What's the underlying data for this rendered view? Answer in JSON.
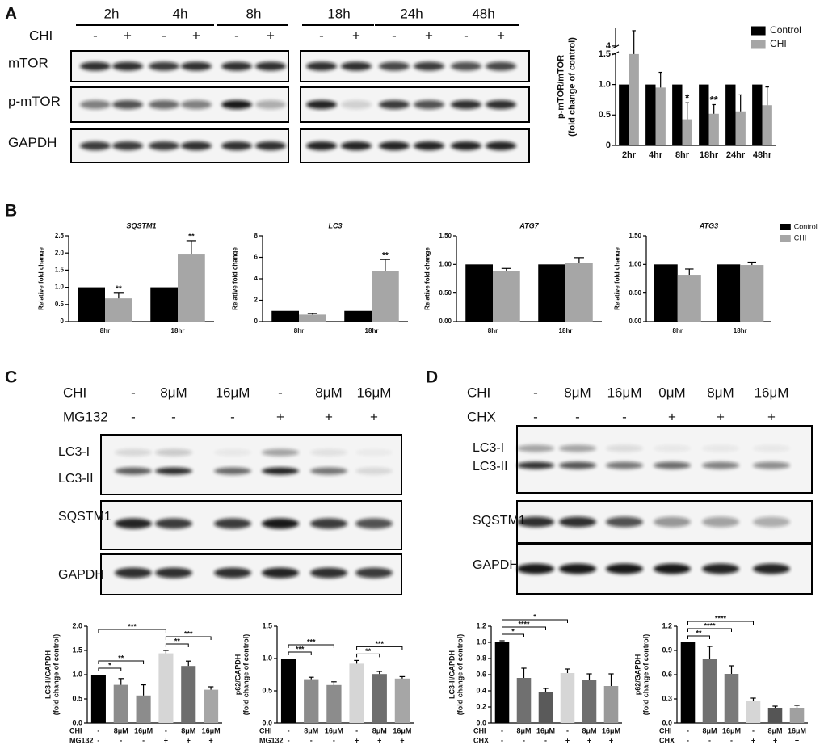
{
  "panels": [
    "A",
    "B",
    "C",
    "D"
  ],
  "blots": {
    "A": {
      "times": [
        "2h",
        "4h",
        "8h",
        "18h",
        "24h",
        "48h"
      ],
      "treatment": "CHI",
      "lanes": [
        "-",
        "+",
        "-",
        "+",
        "-",
        "+",
        "-",
        "+",
        "-",
        "+",
        "-",
        "+"
      ],
      "rows": [
        "mTOR",
        "p-mTOR",
        "GAPDH"
      ]
    },
    "C": {
      "conditions": [
        {
          "name": "CHI",
          "lanes": [
            "-",
            "8μM",
            "16μM",
            "-",
            "8μM",
            "16μM"
          ]
        },
        {
          "name": "MG132",
          "lanes": [
            "-",
            "-",
            "-",
            "+",
            "+",
            "+"
          ]
        }
      ],
      "rows": [
        "LC3-I",
        "LC3-II",
        "SQSTM1",
        "GAPDH"
      ]
    },
    "D": {
      "conditions": [
        {
          "name": "CHI",
          "lanes": [
            "-",
            "8μM",
            "16μM",
            "0μM",
            "8μM",
            "16μM"
          ]
        },
        {
          "name": "CHX",
          "lanes": [
            "-",
            "-",
            "-",
            "+",
            "+",
            "+"
          ]
        }
      ],
      "rows": [
        "LC3-I",
        "LC3-II",
        "SQSTM1",
        "GAPDH"
      ]
    }
  },
  "chart_data": [
    {
      "type": "bar",
      "ylabel": [
        "p-mTOR/mTOR",
        "(fold change of control)"
      ],
      "categories": [
        "2hr",
        "4hr",
        "8hr",
        "18hr",
        "24hr",
        "48hr"
      ],
      "series": [
        {
          "name": "Control",
          "color": "#000000",
          "values": [
            1,
            1,
            1,
            1,
            1,
            1
          ]
        },
        {
          "name": "CHI",
          "color": "#a6a6a6",
          "values": [
            1.5,
            0.95,
            0.43,
            0.52,
            0.56,
            0.66
          ],
          "errors": [
            5.1,
            0.25,
            0.27,
            0.15,
            0.27,
            0.3
          ]
        }
      ],
      "ylim": [
        0,
        7
      ],
      "ybreak": [
        1.5,
        4
      ],
      "yticks": [
        0,
        0.5,
        {
          "value": 1,
          "label": "1.0"
        },
        1.5,
        4
      ],
      "annotations": [
        {
          "text": "*",
          "category": 2,
          "series": 1
        },
        {
          "text": "**",
          "category": 3,
          "series": 1
        }
      ],
      "legend": "upper right"
    },
    {
      "type": "bar",
      "title": "SQSTM1",
      "ylabel": [
        "Relative fold change"
      ],
      "categories": [
        "8hr",
        "18hr"
      ],
      "series": [
        {
          "name": "Control",
          "color": "#000000",
          "values": [
            1,
            1
          ]
        },
        {
          "name": "CHI",
          "color": "#a6a6a6",
          "values": [
            0.68,
            1.98
          ],
          "errors": [
            0.15,
            0.38
          ]
        }
      ],
      "ylim": [
        0,
        2.5
      ],
      "yticks": [
        0,
        0.5,
        {
          "value": 1,
          "label": "1.0"
        },
        1.5,
        {
          "value": 2,
          "label": "2.0"
        },
        2.5
      ],
      "annotations": [
        {
          "text": "**",
          "category": 0,
          "series": 1
        },
        {
          "text": "**",
          "category": 1,
          "series": 1
        }
      ]
    },
    {
      "type": "bar",
      "title": "LC3",
      "ylabel": [
        "Relative fold change"
      ],
      "categories": [
        "8hr",
        "18hr"
      ],
      "series": [
        {
          "name": "Control",
          "color": "#000000",
          "values": [
            1,
            1
          ]
        },
        {
          "name": "CHI",
          "color": "#a6a6a6",
          "values": [
            0.65,
            4.75
          ],
          "errors": [
            0.1,
            1.05
          ]
        }
      ],
      "ylim": [
        0,
        8
      ],
      "yticks": [
        0,
        2,
        4,
        6,
        8
      ],
      "annotations": [
        {
          "text": "**",
          "category": 1,
          "series": 1
        }
      ]
    },
    {
      "type": "bar",
      "title": "ATG7",
      "ylabel": [
        "Relative fold change"
      ],
      "categories": [
        "8hr",
        "18hr"
      ],
      "series": [
        {
          "name": "Control",
          "color": "#000000",
          "values": [
            1,
            1
          ]
        },
        {
          "name": "CHI",
          "color": "#a6a6a6",
          "values": [
            0.89,
            1.02
          ],
          "errors": [
            0.04,
            0.1
          ]
        }
      ],
      "ylim": [
        0,
        1.5
      ],
      "yticks": [
        {
          "value": 0,
          "label": "0.00"
        },
        {
          "value": 0.5,
          "label": "0.50"
        },
        {
          "value": 1,
          "label": "1.00"
        },
        {
          "value": 1.5,
          "label": "1.50"
        }
      ]
    },
    {
      "type": "bar",
      "title": "ATG3",
      "ylabel": [
        "Relative fold change"
      ],
      "categories": [
        "8hr",
        "18hr"
      ],
      "series": [
        {
          "name": "Control",
          "color": "#000000",
          "values": [
            1,
            1
          ]
        },
        {
          "name": "CHI",
          "color": "#a6a6a6",
          "values": [
            0.82,
            0.99
          ],
          "errors": [
            0.1,
            0.05
          ]
        }
      ],
      "ylim": [
        0,
        1.5
      ],
      "yticks": [
        {
          "value": 0,
          "label": "0.00"
        },
        {
          "value": 0.5,
          "label": "0.50"
        },
        {
          "value": 1,
          "label": "1.00"
        },
        {
          "value": 1.5,
          "label": "1.50"
        }
      ],
      "legend": "upper right"
    },
    {
      "type": "bar",
      "ylabel": [
        "LC3-II/GAPDH",
        "(fold change of control)"
      ],
      "categories": [
        "-",
        "8μM",
        "16μM",
        "-",
        "8μM",
        "16μM"
      ],
      "categories2": [
        "-",
        "-",
        "-",
        "+",
        "+",
        "+"
      ],
      "category_names": [
        "CHI",
        "MG132"
      ],
      "series": [
        {
          "values": [
            1.0,
            0.79,
            0.57,
            1.44,
            1.18,
            0.69
          ],
          "errors": [
            null,
            0.13,
            0.22,
            0.06,
            0.1,
            0.06
          ],
          "colors": [
            "#000000",
            "#8c8c8c",
            "#8c8c8c",
            "#d6d6d6",
            "#6e6e6e",
            "#a6a6a6"
          ]
        }
      ],
      "ylim": [
        0,
        2
      ],
      "yticks": [
        {
          "value": 0,
          "label": "0.0"
        },
        0.5,
        {
          "value": 1,
          "label": "1.0"
        },
        1.5,
        {
          "value": 2,
          "label": "2.0"
        }
      ],
      "brackets": [
        {
          "text": "*",
          "from": 0,
          "to": 1
        },
        {
          "text": "**",
          "from": 0,
          "to": 2
        },
        {
          "text": "**",
          "from": 3,
          "to": 4
        },
        {
          "text": "***",
          "from": 3,
          "to": 5
        },
        {
          "text": "***",
          "from": 0,
          "to": 3
        }
      ]
    },
    {
      "type": "bar",
      "ylabel": [
        "p62/GAPDH",
        "(fold change of control)"
      ],
      "categories": [
        "-",
        "8μM",
        "16μM",
        "-",
        "8μM",
        "16μM"
      ],
      "categories2": [
        "-",
        "-",
        "-",
        "+",
        "+",
        "+"
      ],
      "category_names": [
        "CHI",
        "MG132"
      ],
      "series": [
        {
          "values": [
            1.0,
            0.68,
            0.59,
            0.92,
            0.76,
            0.69
          ],
          "errors": [
            null,
            0.03,
            0.05,
            0.05,
            0.04,
            0.03
          ],
          "colors": [
            "#000000",
            "#8c8c8c",
            "#8c8c8c",
            "#d6d6d6",
            "#6e6e6e",
            "#a6a6a6"
          ]
        }
      ],
      "ylim": [
        0,
        1.5
      ],
      "yticks": [
        {
          "value": 0,
          "label": "0.0"
        },
        0.5,
        {
          "value": 1,
          "label": "1.0"
        },
        1.5
      ],
      "brackets": [
        {
          "text": "***",
          "from": 0,
          "to": 1
        },
        {
          "text": "***",
          "from": 0,
          "to": 2
        },
        {
          "text": "**",
          "from": 3,
          "to": 4
        },
        {
          "text": "***",
          "from": 3,
          "to": 5
        }
      ]
    },
    {
      "type": "bar",
      "ylabel": [
        "LC3-II/GAPDH",
        "(fold change of control)"
      ],
      "categories": [
        "-",
        "8μM",
        "16μM",
        "-",
        "8μM",
        "16μM"
      ],
      "categories2": [
        "-",
        "-",
        "-",
        "+",
        "+",
        "+"
      ],
      "category_names": [
        "CHI",
        "CHX"
      ],
      "series": [
        {
          "values": [
            1.0,
            0.56,
            0.38,
            0.62,
            0.54,
            0.46
          ],
          "errors": [
            0.02,
            0.12,
            0.05,
            0.05,
            0.07,
            0.15
          ],
          "colors": [
            "#000000",
            "#707070",
            "#5a5a5a",
            "#d6d6d6",
            "#6e6e6e",
            "#9a9a9a"
          ]
        }
      ],
      "ylim": [
        0,
        1.2
      ],
      "yticks": [
        {
          "value": 0,
          "label": "0.0"
        },
        0.2,
        0.4,
        0.6,
        0.8,
        {
          "value": 1,
          "label": "1.0"
        },
        1.2
      ],
      "brackets": [
        {
          "text": "*",
          "from": 0,
          "to": 1
        },
        {
          "text": "****",
          "from": 0,
          "to": 2
        },
        {
          "text": "*",
          "from": 0,
          "to": 3
        }
      ]
    },
    {
      "type": "bar",
      "ylabel": [
        "p62/GAPDH",
        "(fold change of control)"
      ],
      "categories": [
        "-",
        "8μM",
        "16μM",
        "-",
        "8μM",
        "16μM"
      ],
      "categories2": [
        "-",
        "-",
        "-",
        "+",
        "+",
        "+"
      ],
      "category_names": [
        "CHI",
        "CHX"
      ],
      "series": [
        {
          "values": [
            1.0,
            0.8,
            0.61,
            0.28,
            0.19,
            0.19
          ],
          "errors": [
            null,
            0.15,
            0.1,
            0.03,
            0.02,
            0.03
          ],
          "colors": [
            "#000000",
            "#707070",
            "#7a7a7a",
            "#d6d6d6",
            "#555555",
            "#a0a0a0"
          ]
        }
      ],
      "ylim": [
        0,
        1.2
      ],
      "yticks": [
        {
          "value": 0,
          "label": "0.0"
        },
        0.3,
        0.6,
        0.9,
        1.2
      ],
      "brackets": [
        {
          "text": "**",
          "from": 0,
          "to": 1
        },
        {
          "text": "****",
          "from": 0,
          "to": 2
        },
        {
          "text": "****",
          "from": 0,
          "to": 3
        }
      ]
    }
  ]
}
